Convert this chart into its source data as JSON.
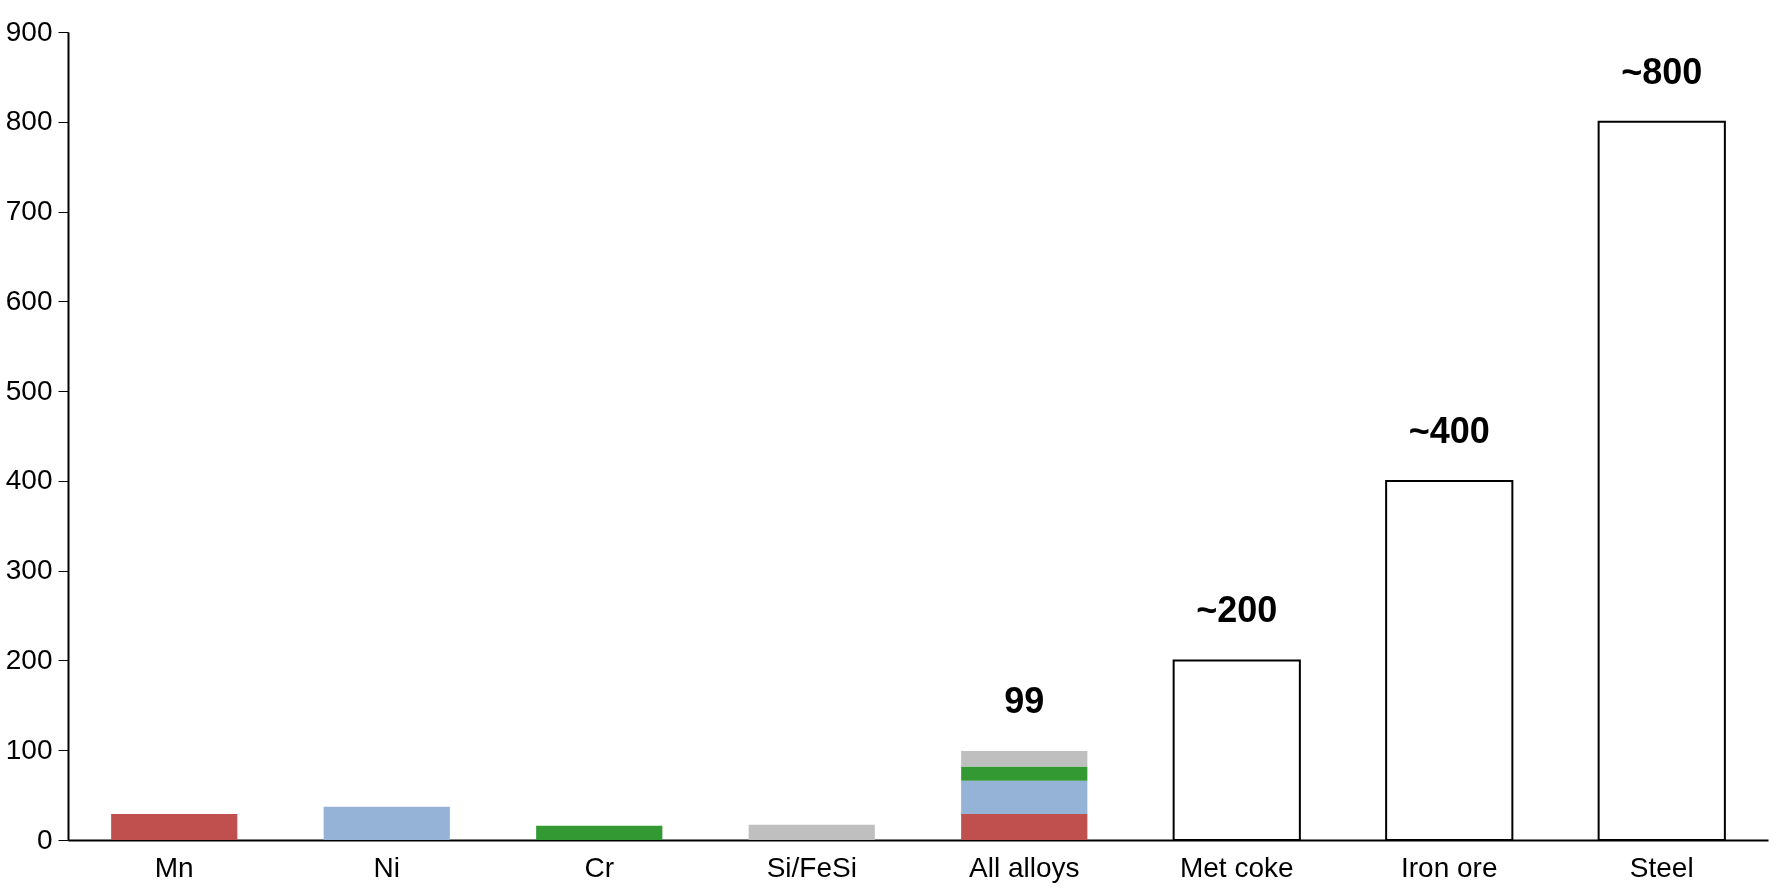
{
  "chart_data": {
    "type": "bar",
    "stacked": true,
    "categories": [
      "Mn",
      "Ni",
      "Cr",
      "Si/FeSi",
      "All alloys",
      "Met coke",
      "Iron ore",
      "Steel"
    ],
    "series": [
      {
        "color": "#c0504d",
        "values": [
          29,
          null,
          null,
          null,
          29,
          null,
          null,
          null
        ]
      },
      {
        "color": "#95b3d7",
        "values": [
          null,
          37,
          null,
          null,
          37,
          null,
          null,
          null
        ]
      },
      {
        "color": "#339933",
        "values": [
          null,
          null,
          16,
          null,
          16,
          null,
          null,
          null
        ]
      },
      {
        "color": "#bfbfbf",
        "values": [
          null,
          null,
          null,
          17,
          17,
          null,
          null,
          null
        ]
      },
      {
        "color": "#ffffff",
        "values": [
          null,
          null,
          null,
          null,
          null,
          200,
          400,
          800
        ]
      }
    ],
    "totals": [
      null,
      null,
      null,
      null,
      "99",
      "~200",
      "~400",
      "~800"
    ],
    "ylim": [
      0,
      900
    ],
    "yticks": [
      0,
      100,
      200,
      300,
      400,
      500,
      600,
      700,
      800,
      900
    ],
    "grid": false
  }
}
